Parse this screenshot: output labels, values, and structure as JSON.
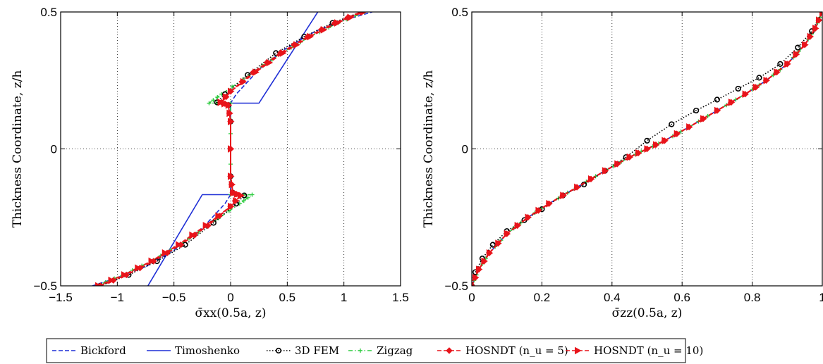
{
  "colors": {
    "bickford": "#1f2fd6",
    "timoshenko": "#1f2fd6",
    "fem": "#000000",
    "zigzag": "#2ecc40",
    "hosndt5": "#e8141b",
    "hosndt10": "#e8141b"
  },
  "legend": {
    "placement": "bottom-center",
    "entries": [
      {
        "key": "bickford",
        "label": "Bickford",
        "style": "dashed",
        "marker": "none"
      },
      {
        "key": "timoshenko",
        "label": "Timoshenko",
        "style": "solid",
        "marker": "none"
      },
      {
        "key": "fem",
        "label": "3D FEM",
        "style": "dotted",
        "marker": "circle"
      },
      {
        "key": "zigzag",
        "label": "Zigzag",
        "style": "dashdot",
        "marker": "plus"
      },
      {
        "key": "hosndt5",
        "label": "HOSNDT (n_u = 5)",
        "style": "dashed",
        "marker": "diamond"
      },
      {
        "key": "hosndt10",
        "label": "HOSNDT (n_u = 10)",
        "style": "dashed",
        "marker": "triangle-right"
      }
    ]
  },
  "chart_data": [
    {
      "type": "line",
      "xlabel": "σ̄xx(0.5a, z)",
      "ylabel": "Thickness Coordinate, z/h",
      "xlim": [
        -1.5,
        1.5
      ],
      "ylim": [
        -0.5,
        0.5
      ],
      "xticks": [
        -1.5,
        -1,
        -0.5,
        0,
        0.5,
        1,
        1.5
      ],
      "xtick_labels": [
        "−1.5",
        "−1",
        "−0.5",
        "0",
        "0.5",
        "1",
        "1.5"
      ],
      "yticks": [
        -0.5,
        0,
        0.5
      ],
      "ytick_labels": [
        "−0.5",
        "0",
        "0.5"
      ],
      "grid": true,
      "series": [
        {
          "key": "timoshenko",
          "x": [
            -0.73,
            -0.25,
            0,
            0,
            0.25,
            0.77
          ],
          "y": [
            -0.5,
            -0.167,
            -0.167,
            0.167,
            0.167,
            0.5
          ]
        },
        {
          "key": "bickford",
          "x": [
            -1.22,
            -1.0,
            -0.75,
            -0.5,
            -0.25,
            -0.05,
            0.0,
            0.0,
            0.05,
            0.25,
            0.5,
            0.75,
            1.0,
            1.25
          ],
          "y": [
            -0.5,
            -0.47,
            -0.43,
            -0.37,
            -0.29,
            -0.2,
            -0.167,
            0.167,
            0.2,
            0.29,
            0.37,
            0.43,
            0.47,
            0.5
          ]
        },
        {
          "key": "zigzag",
          "x": [
            -1.18,
            -0.95,
            -0.7,
            -0.45,
            -0.2,
            0.08,
            0.19,
            0.0,
            0.0,
            -0.19,
            -0.08,
            0.2,
            0.45,
            0.7,
            0.95,
            1.18
          ],
          "y": [
            -0.5,
            -0.46,
            -0.41,
            -0.35,
            -0.28,
            -0.2,
            -0.167,
            -0.167,
            0.167,
            0.167,
            0.2,
            0.28,
            0.35,
            0.41,
            0.46,
            0.5
          ]
        },
        {
          "key": "fem",
          "x": [
            -1.15,
            -0.9,
            -0.65,
            -0.4,
            -0.15,
            0.05,
            0.12,
            0.02,
            0.0,
            0.0,
            -0.02,
            -0.12,
            -0.05,
            0.15,
            0.4,
            0.65,
            0.9,
            1.15
          ],
          "y": [
            -0.5,
            -0.46,
            -0.41,
            -0.35,
            -0.27,
            -0.2,
            -0.17,
            -0.16,
            -0.1,
            0.1,
            0.16,
            0.17,
            0.2,
            0.27,
            0.35,
            0.41,
            0.46,
            0.5
          ]
        },
        {
          "key": "hosndt5",
          "x": [
            -1.15,
            -0.92,
            -0.68,
            -0.44,
            -0.2,
            0.0,
            0.08,
            0.02,
            0.0,
            0.0,
            -0.02,
            -0.08,
            0.0,
            0.2,
            0.44,
            0.68,
            0.92,
            1.15
          ],
          "y": [
            -0.5,
            -0.46,
            -0.41,
            -0.35,
            -0.28,
            -0.21,
            -0.17,
            -0.16,
            -0.1,
            0.1,
            0.16,
            0.17,
            0.21,
            0.28,
            0.35,
            0.41,
            0.46,
            0.5
          ]
        },
        {
          "key": "hosndt10",
          "x": [
            -1.17,
            -0.94,
            -0.7,
            -0.46,
            -0.22,
            0.0,
            0.09,
            0.02,
            0.0,
            0.0,
            -0.02,
            -0.09,
            0.0,
            0.22,
            0.46,
            0.7,
            0.94,
            1.17
          ],
          "y": [
            -0.5,
            -0.46,
            -0.41,
            -0.35,
            -0.28,
            -0.21,
            -0.17,
            -0.16,
            -0.1,
            0.1,
            0.16,
            0.17,
            0.21,
            0.28,
            0.35,
            0.41,
            0.46,
            0.5
          ]
        }
      ]
    },
    {
      "type": "line",
      "xlabel": "σ̄zz(0.5a, z)",
      "ylabel": "Thickness Coordinate, z/h",
      "xlim": [
        0,
        1
      ],
      "ylim": [
        -0.5,
        0.5
      ],
      "xticks": [
        0,
        0.2,
        0.4,
        0.6,
        0.8,
        1
      ],
      "xtick_labels": [
        "0",
        "0.2",
        "0.4",
        "0.6",
        "0.8",
        "1"
      ],
      "yticks": [
        -0.5,
        0,
        0.5
      ],
      "ytick_labels": [
        "−0.5",
        "0",
        "0.5"
      ],
      "grid": true,
      "series": [
        {
          "key": "bickford",
          "x": [
            0.0,
            0.02,
            0.05,
            0.1,
            0.16,
            0.22,
            0.3,
            0.38,
            0.45,
            0.5,
            0.55,
            0.62,
            0.7,
            0.78,
            0.84,
            0.9,
            0.95,
            0.98,
            1.0
          ],
          "y": [
            -0.5,
            -0.44,
            -0.38,
            -0.31,
            -0.25,
            -0.2,
            -0.14,
            -0.08,
            -0.03,
            0.0,
            0.03,
            0.08,
            0.14,
            0.2,
            0.25,
            0.31,
            0.38,
            0.44,
            0.5
          ]
        },
        {
          "key": "timoshenko",
          "x": [
            0.0,
            0.02,
            0.05,
            0.1,
            0.16,
            0.22,
            0.3,
            0.38,
            0.45,
            0.5,
            0.55,
            0.62,
            0.7,
            0.78,
            0.84,
            0.9,
            0.95,
            0.98,
            1.0
          ],
          "y": [
            -0.5,
            -0.44,
            -0.38,
            -0.31,
            -0.25,
            -0.2,
            -0.14,
            -0.08,
            -0.03,
            0.0,
            0.03,
            0.08,
            0.14,
            0.2,
            0.25,
            0.31,
            0.38,
            0.44,
            0.5
          ]
        },
        {
          "key": "zigzag",
          "x": [
            0.0,
            0.02,
            0.05,
            0.1,
            0.16,
            0.22,
            0.3,
            0.38,
            0.45,
            0.5,
            0.55,
            0.62,
            0.7,
            0.78,
            0.84,
            0.9,
            0.95,
            0.98,
            1.0
          ],
          "y": [
            -0.5,
            -0.44,
            -0.38,
            -0.31,
            -0.25,
            -0.2,
            -0.14,
            -0.08,
            -0.03,
            0.0,
            0.03,
            0.08,
            0.14,
            0.2,
            0.25,
            0.31,
            0.38,
            0.44,
            0.5
          ]
        },
        {
          "key": "fem",
          "x": [
            0.0,
            0.01,
            0.03,
            0.06,
            0.1,
            0.15,
            0.2,
            0.26,
            0.32,
            0.38,
            0.44,
            0.5,
            0.57,
            0.64,
            0.7,
            0.76,
            0.82,
            0.88,
            0.93,
            0.97,
            1.0
          ],
          "y": [
            -0.5,
            -0.45,
            -0.4,
            -0.35,
            -0.3,
            -0.26,
            -0.22,
            -0.17,
            -0.13,
            -0.08,
            -0.03,
            0.03,
            0.09,
            0.14,
            0.18,
            0.22,
            0.26,
            0.31,
            0.37,
            0.43,
            0.5
          ]
        },
        {
          "key": "hosndt5",
          "x": [
            0.0,
            0.02,
            0.05,
            0.1,
            0.16,
            0.22,
            0.3,
            0.38,
            0.45,
            0.5,
            0.55,
            0.62,
            0.7,
            0.78,
            0.84,
            0.9,
            0.95,
            0.98,
            1.0
          ],
          "y": [
            -0.5,
            -0.44,
            -0.38,
            -0.31,
            -0.25,
            -0.2,
            -0.14,
            -0.08,
            -0.03,
            0.0,
            0.03,
            0.08,
            0.14,
            0.2,
            0.25,
            0.31,
            0.38,
            0.44,
            0.5
          ]
        },
        {
          "key": "hosndt10",
          "x": [
            0.0,
            0.02,
            0.05,
            0.1,
            0.16,
            0.22,
            0.3,
            0.38,
            0.45,
            0.5,
            0.55,
            0.62,
            0.7,
            0.78,
            0.84,
            0.9,
            0.95,
            0.98,
            1.0
          ],
          "y": [
            -0.5,
            -0.44,
            -0.38,
            -0.31,
            -0.25,
            -0.2,
            -0.14,
            -0.08,
            -0.03,
            0.0,
            0.03,
            0.08,
            0.14,
            0.2,
            0.25,
            0.31,
            0.38,
            0.44,
            0.5
          ]
        }
      ]
    }
  ]
}
